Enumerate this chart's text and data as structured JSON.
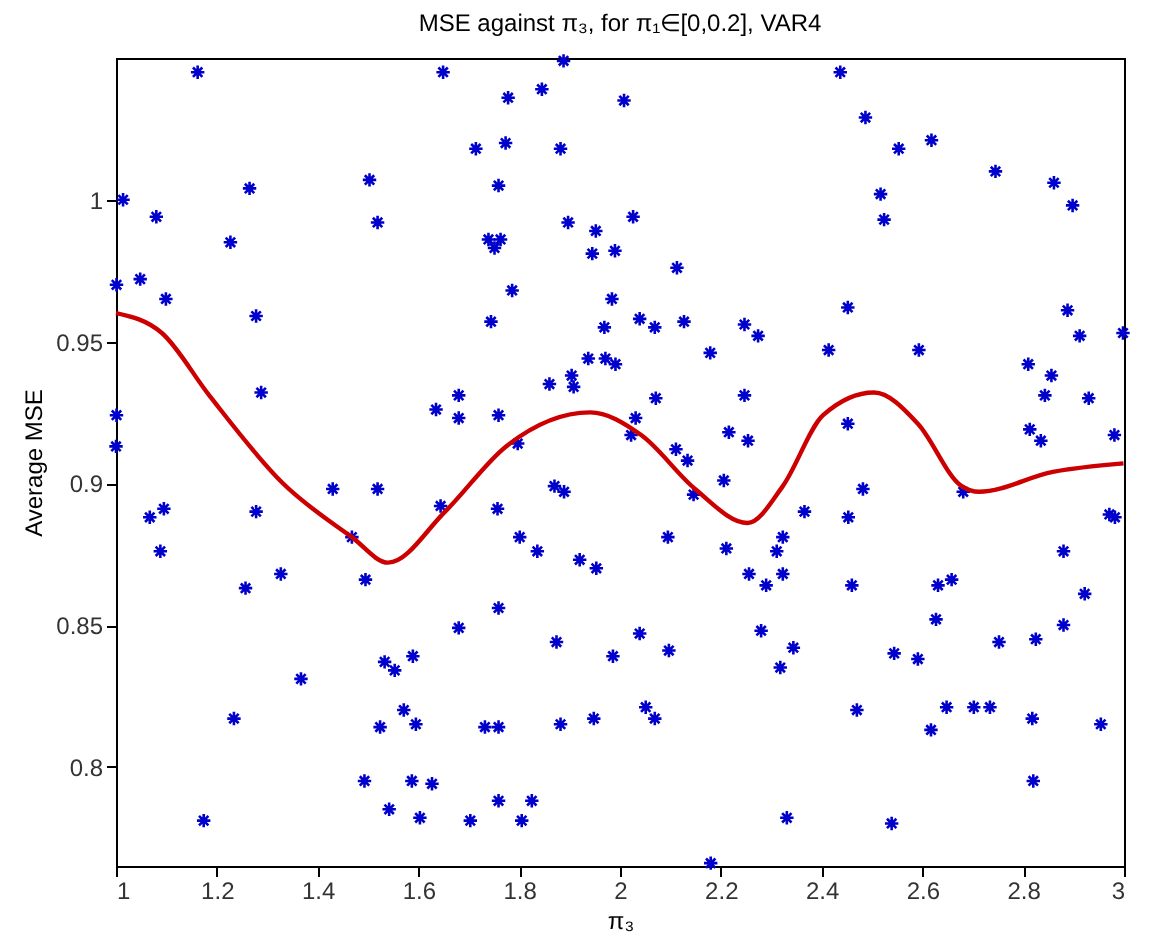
{
  "chart_data": {
    "type": "scatter",
    "title": "MSE against π₃, for π₁∈[0,0.2], VAR4",
    "xlabel": "π₃",
    "ylabel": "Average MSE",
    "xlim": [
      1,
      3
    ],
    "ylim": [
      0.765,
      1.05
    ],
    "xticks": [
      1,
      1.2,
      1.4,
      1.6,
      1.8,
      2,
      2.2,
      2.4,
      2.6,
      2.8,
      3
    ],
    "yticks": [
      0.8,
      0.85,
      0.9,
      0.95,
      1
    ],
    "grid": false,
    "series": [
      {
        "marker": "cross",
        "color": "#0000cc",
        "x": [
          1.162,
          1.649,
          1.014,
          1.08,
          1.265,
          1.227,
          1.503,
          1.519,
          1.001,
          1.048,
          1.099,
          1.278,
          1.288,
          1.001,
          1.0,
          1.635,
          1.43,
          1.519,
          1.888,
          1.778,
          1.845,
          2.008,
          1.714,
          1.773,
          1.882,
          1.759,
          1.897,
          1.952,
          2.026,
          1.945,
          1.99,
          1.739,
          1.763,
          1.751,
          2.113,
          1.786,
          1.744,
          1.984,
          1.969,
          2.039,
          2.069,
          2.127,
          2.247,
          2.274,
          2.179,
          1.937,
          1.971,
          1.991,
          1.86,
          1.904,
          1.908,
          1.68,
          1.68,
          1.759,
          2.071,
          2.247,
          2.031,
          2.022,
          2.216,
          2.254,
          1.797,
          2.111,
          2.134,
          2.206,
          1.87,
          1.889,
          2.437,
          2.487,
          2.553,
          2.618,
          2.745,
          2.861,
          2.898,
          2.517,
          2.524,
          2.452,
          2.414,
          2.593,
          2.888,
          2.912,
          2.998,
          2.81,
          2.856,
          2.843,
          2.93,
          2.813,
          2.835,
          2.981,
          2.452,
          2.482,
          2.681,
          1.067,
          1.095,
          1.088,
          1.278,
          1.257,
          1.327,
          1.468,
          1.495,
          1.644,
          1.367,
          1.234,
          1.533,
          1.553,
          1.589,
          1.571,
          1.595,
          1.524,
          1.493,
          1.542,
          1.587,
          1.627,
          1.603,
          1.174,
          1.757,
          1.801,
          1.836,
          1.92,
          1.953,
          2.095,
          2.211,
          2.311,
          2.323,
          2.256,
          2.29,
          2.323,
          1.759,
          1.68,
          1.874,
          1.986,
          2.039,
          2.097,
          2.28,
          2.318,
          2.344,
          1.732,
          1.759,
          1.882,
          1.948,
          2.051,
          2.069,
          1.759,
          1.825,
          1.703,
          1.805,
          2.18,
          2.331,
          2.146,
          2.366,
          2.453,
          2.971,
          2.982,
          2.88,
          2.922,
          2.46,
          2.631,
          2.658,
          2.627,
          2.88,
          2.752,
          2.825,
          2.544,
          2.591,
          2.47,
          2.648,
          2.702,
          2.734,
          2.617,
          2.818,
          2.954,
          2.82,
          2.539
        ],
        "values": [
          1.045,
          1.045,
          1.0,
          0.994,
          1.004,
          0.985,
          1.007,
          0.992,
          0.97,
          0.972,
          0.965,
          0.959,
          0.932,
          0.924,
          0.913,
          0.926,
          0.898,
          0.898,
          1.049,
          1.036,
          1.039,
          1.035,
          1.018,
          1.02,
          1.018,
          1.005,
          0.992,
          0.989,
          0.994,
          0.981,
          0.982,
          0.986,
          0.986,
          0.983,
          0.976,
          0.968,
          0.957,
          0.965,
          0.955,
          0.958,
          0.955,
          0.957,
          0.956,
          0.952,
          0.946,
          0.944,
          0.944,
          0.942,
          0.935,
          0.938,
          0.934,
          0.931,
          0.923,
          0.924,
          0.93,
          0.931,
          0.923,
          0.917,
          0.918,
          0.915,
          0.914,
          0.912,
          0.908,
          0.901,
          0.899,
          0.897,
          1.045,
          1.029,
          1.018,
          1.021,
          1.01,
          1.006,
          0.998,
          1.002,
          0.993,
          0.962,
          0.947,
          0.947,
          0.961,
          0.952,
          0.953,
          0.942,
          0.938,
          0.931,
          0.93,
          0.919,
          0.915,
          0.917,
          0.921,
          0.898,
          0.897,
          0.888,
          0.891,
          0.876,
          0.89,
          0.863,
          0.868,
          0.881,
          0.866,
          0.892,
          0.831,
          0.817,
          0.837,
          0.834,
          0.839,
          0.82,
          0.815,
          0.814,
          0.795,
          0.785,
          0.795,
          0.794,
          0.782,
          0.781,
          0.891,
          0.881,
          0.876,
          0.873,
          0.87,
          0.881,
          0.877,
          0.876,
          0.881,
          0.868,
          0.864,
          0.868,
          0.856,
          0.849,
          0.844,
          0.839,
          0.847,
          0.841,
          0.848,
          0.835,
          0.842,
          0.814,
          0.814,
          0.815,
          0.817,
          0.821,
          0.817,
          0.788,
          0.788,
          0.781,
          0.781,
          0.766,
          0.782,
          0.896,
          0.89,
          0.888,
          0.889,
          0.888,
          0.876,
          0.861,
          0.864,
          0.864,
          0.866,
          0.852,
          0.85,
          0.844,
          0.845,
          0.84,
          0.838,
          0.82,
          0.821,
          0.821,
          0.821,
          0.813,
          0.817,
          0.815,
          0.795,
          0.78
        ]
      },
      {
        "type": "line",
        "marker": "none",
        "line_style": "solid",
        "color": "#cc0000",
        "x": [
          1.0,
          1.091,
          1.185,
          1.331,
          1.468,
          1.54,
          1.653,
          1.774,
          1.941,
          2.042,
          2.149,
          2.253,
          2.323,
          2.403,
          2.504,
          2.591,
          2.678,
          2.712,
          2.859,
          2.999
        ],
        "values": [
          0.96,
          0.953,
          0.931,
          0.9,
          0.881,
          0.872,
          0.89,
          0.913,
          0.925,
          0.917,
          0.898,
          0.886,
          0.899,
          0.924,
          0.932,
          0.921,
          0.899,
          0.897,
          0.904,
          0.907
        ]
      }
    ]
  }
}
